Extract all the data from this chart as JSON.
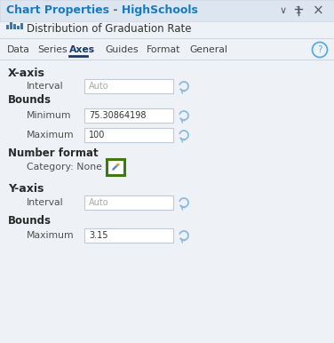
{
  "title": "Chart Properties - HighSchools",
  "subtitle": "Distribution of Graduation Rate",
  "tabs": [
    "Data",
    "Series",
    "Axes",
    "Guides",
    "Format",
    "General"
  ],
  "active_tab": "Axes",
  "bg_color": "#eef2f6",
  "title_bar_color": "#dde6f0",
  "title_color": "#1a7abf",
  "tab_color": "#444444",
  "active_tab_color": "#1a3a6a",
  "section_color": "#2a2a2a",
  "label_color": "#505050",
  "input_bg": "#ffffff",
  "input_border": "#c0cad8",
  "x_axis_label": "X-axis",
  "x_interval_label": "Interval",
  "x_interval_value": "Auto",
  "bounds_label": "Bounds",
  "minimum_label": "Minimum",
  "minimum_value": "75.30864198",
  "maximum_label": "Maximum",
  "maximum_value": "100",
  "number_format_label": "Number format",
  "category_label": "Category: None",
  "y_axis_label": "Y-axis",
  "y_interval_label": "Interval",
  "y_interval_value": "Auto",
  "y_bounds_label": "Bounds",
  "y_maximum_label": "Maximum",
  "y_maximum_value": "3.15",
  "pencil_btn_border": "#3a7a10",
  "pencil_btn_bg": "#ffffff",
  "pencil_color": "#5090d0",
  "reset_arrow_color": "#88bce0",
  "help_circle_color": "#5aabdb",
  "icon_color": "#2a7abf",
  "separator_color": "#d0d8e4",
  "top_icons_color": "#555566"
}
